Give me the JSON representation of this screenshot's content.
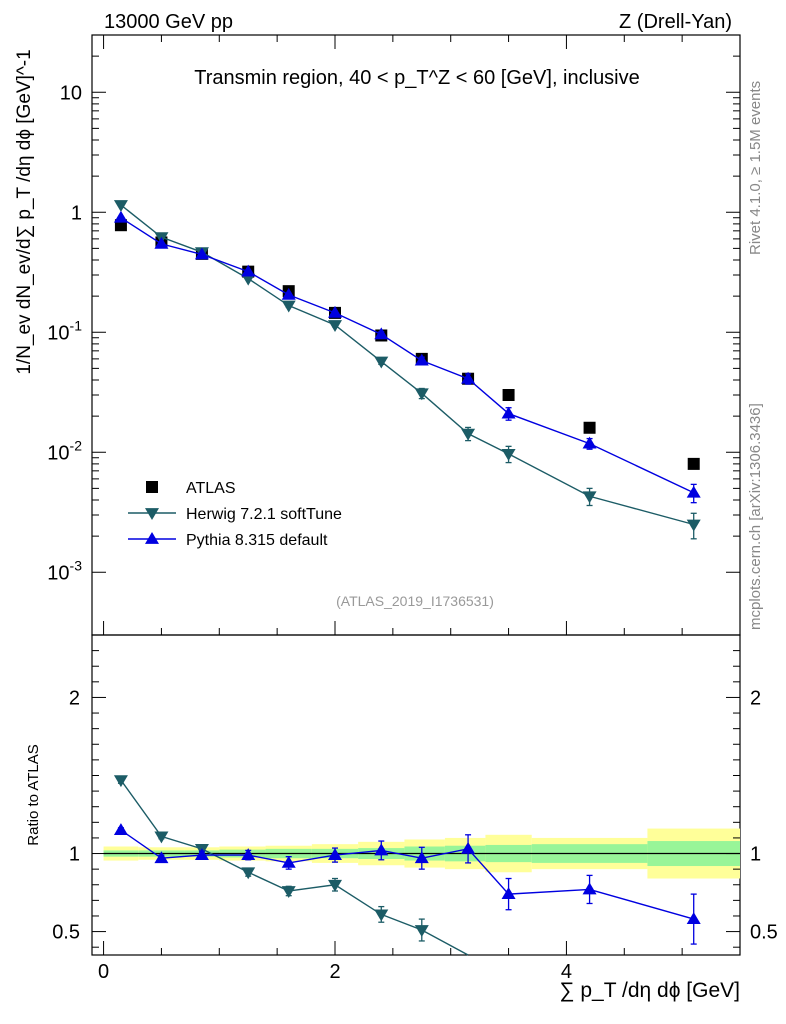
{
  "header": {
    "energy": "13000 GeV pp",
    "process": "Z (Drell-Yan)"
  },
  "side_labels": {
    "rivet": "Rivet 4.1.0, ≥ 1.5M events",
    "mcplots": "mcplots.cern.ch [arXiv:1306.3436]"
  },
  "colors": {
    "atlas": "#000000",
    "herwig": "#1c5c66",
    "pythia": "#0000e0",
    "band_inner": "#98f598",
    "band_outer": "#ffff99"
  },
  "chart_data": [
    {
      "type": "scatter",
      "panel": "main",
      "title": "Transmin region, 40 < p_T^Z < 60 [GeV], inclusive",
      "ylabel": "1/N_ev dN_ev/d∑ p_T /dη dϕ [GeV]^-1",
      "yscale": "log",
      "ylim": [
        0.0003,
        30
      ],
      "xlim": [
        -0.1,
        5.5
      ],
      "yticks": [
        "10^-3",
        "10^-2",
        "10^-1",
        "1",
        "10"
      ],
      "watermark": "(ATLAS_2019_I1736531)",
      "legend_position": "lower-left",
      "series": [
        {
          "name": "ATLAS",
          "key": "atlas",
          "marker": "square",
          "line": false,
          "x": [
            0.15,
            0.5,
            0.85,
            1.25,
            1.6,
            2.0,
            2.4,
            2.75,
            3.15,
            3.5,
            4.2,
            5.1
          ],
          "y": [
            0.78,
            0.56,
            0.45,
            0.32,
            0.22,
            0.145,
            0.094,
            0.06,
            0.041,
            0.03,
            0.016,
            0.008
          ],
          "yerr": [
            0,
            0,
            0,
            0,
            0,
            0,
            0,
            0,
            0,
            0,
            0,
            0
          ]
        },
        {
          "name": "Herwig 7.2.1 softTune",
          "key": "herwig",
          "marker": "triangle-down",
          "line": true,
          "x": [
            0.15,
            0.5,
            0.85,
            1.25,
            1.6,
            2.0,
            2.4,
            2.75,
            3.15,
            3.5,
            4.2,
            5.1
          ],
          "y": [
            1.15,
            0.62,
            0.465,
            0.28,
            0.167,
            0.115,
            0.057,
            0.031,
            0.0143,
            0.0097,
            0.0043,
            0.0025
          ],
          "yerr": [
            0.02,
            0.01,
            0.01,
            0.006,
            0.005,
            0.004,
            0.003,
            0.003,
            0.0018,
            0.0015,
            0.0007,
            0.0006
          ]
        },
        {
          "name": "Pythia 8.315 default",
          "key": "pythia",
          "marker": "triangle-up",
          "line": true,
          "x": [
            0.15,
            0.5,
            0.85,
            1.25,
            1.6,
            2.0,
            2.4,
            2.75,
            3.15,
            3.5,
            4.2,
            5.1
          ],
          "y": [
            0.9,
            0.545,
            0.445,
            0.32,
            0.205,
            0.145,
            0.096,
            0.058,
            0.041,
            0.021,
            0.0118,
            0.0046
          ],
          "yerr": [
            0.015,
            0.01,
            0.008,
            0.007,
            0.006,
            0.005,
            0.005,
            0.004,
            0.004,
            0.0025,
            0.0012,
            0.0008
          ]
        }
      ]
    },
    {
      "type": "scatter",
      "panel": "ratio",
      "ylabel": "Ratio to ATLAS",
      "xlabel": "∑ p_T /dη dϕ [GeV]",
      "ylim": [
        0.35,
        2.4
      ],
      "xlim": [
        -0.1,
        5.5
      ],
      "xticks": [
        0,
        2,
        4
      ],
      "yticks": [
        0.5,
        1,
        2
      ],
      "reference_line": 1,
      "bands": {
        "x_edges": [
          0.0,
          0.3,
          0.7,
          1.0,
          1.4,
          1.8,
          2.2,
          2.6,
          2.95,
          3.3,
          3.7,
          4.7,
          5.5
        ],
        "inner": [
          0.02,
          0.02,
          0.02,
          0.025,
          0.03,
          0.03,
          0.035,
          0.045,
          0.05,
          0.055,
          0.06,
          0.08
        ],
        "outer": [
          0.045,
          0.04,
          0.04,
          0.045,
          0.05,
          0.06,
          0.075,
          0.09,
          0.1,
          0.12,
          0.1,
          0.16
        ]
      },
      "series": [
        {
          "name": "Herwig 7.2.1 softTune",
          "key": "herwig",
          "marker": "triangle-down",
          "x": [
            0.15,
            0.5,
            0.85,
            1.25,
            1.6,
            2.0,
            2.4,
            2.75,
            3.15
          ],
          "y": [
            1.47,
            1.11,
            1.03,
            0.88,
            0.76,
            0.8,
            0.61,
            0.51,
            0.35
          ],
          "yerr": [
            0.02,
            0.015,
            0.02,
            0.025,
            0.03,
            0.04,
            0.05,
            0.07,
            0.0
          ]
        },
        {
          "name": "Pythia 8.315 default",
          "key": "pythia",
          "marker": "triangle-up",
          "x": [
            0.15,
            0.5,
            0.85,
            1.25,
            1.6,
            2.0,
            2.4,
            2.75,
            3.15,
            3.5,
            4.2,
            5.1
          ],
          "y": [
            1.15,
            0.97,
            0.99,
            0.99,
            0.94,
            0.99,
            1.02,
            0.97,
            1.03,
            0.74,
            0.77,
            0.58
          ],
          "yerr": [
            0.015,
            0.02,
            0.025,
            0.03,
            0.04,
            0.045,
            0.06,
            0.07,
            0.09,
            0.1,
            0.09,
            0.16
          ]
        }
      ]
    }
  ]
}
